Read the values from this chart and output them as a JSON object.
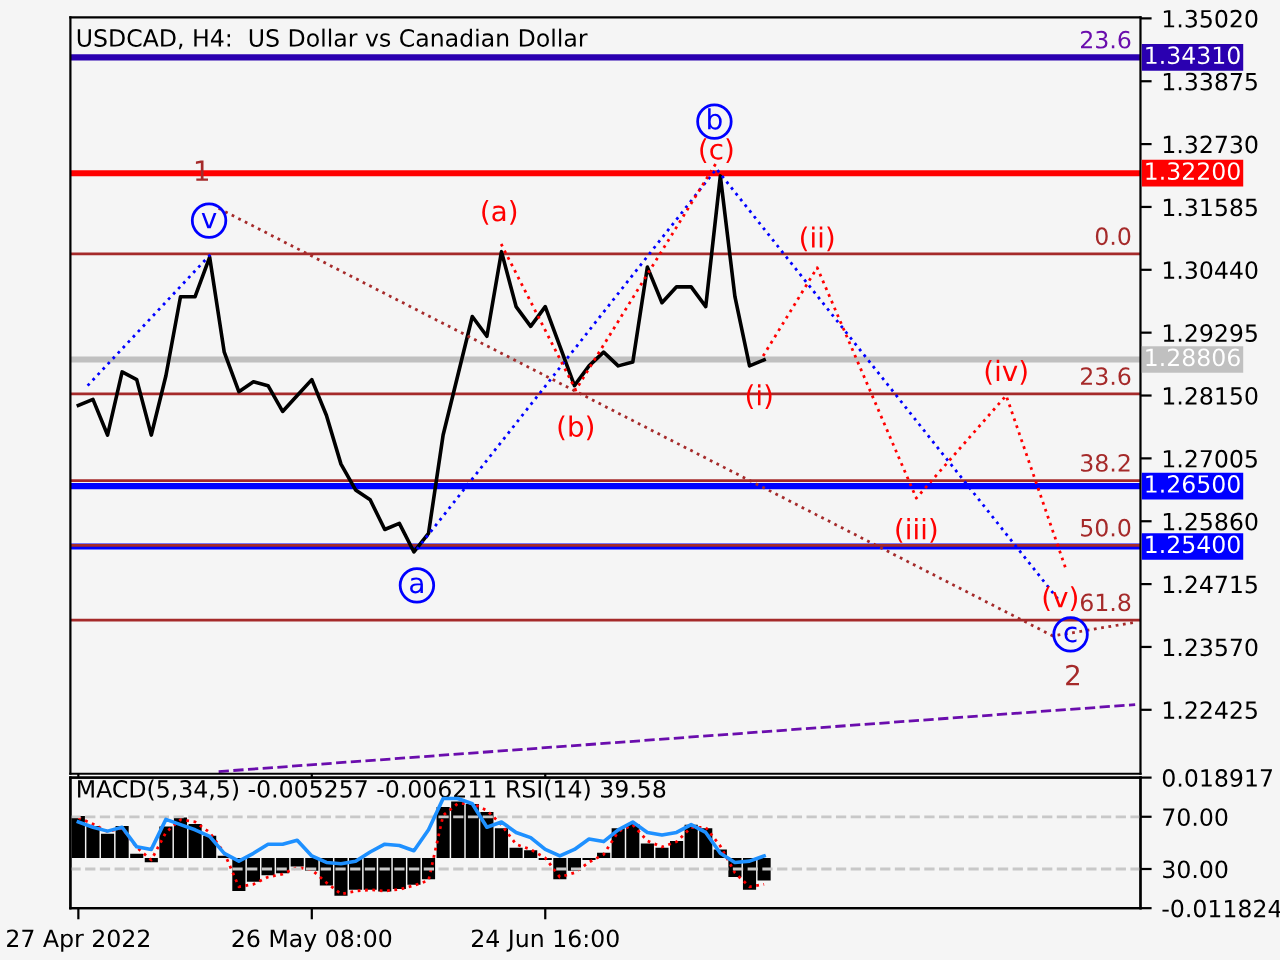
{
  "chart_data": [
    {
      "type": "line",
      "title": "USDCAD, H4:  US Dollar vs Canadian Dollar",
      "xlim": [
        "2022-04-26T00:00",
        "2022-09-07T11:00"
      ],
      "xticks": [
        {
          "value": "2022-04-27T00:00",
          "label": null
        },
        {
          "value": "2022-05-26T08:00",
          "label": null
        },
        {
          "value": "2022-06-24T16:00",
          "label": null
        }
      ],
      "ylim": [
        1.2126,
        1.3504
      ],
      "yticks": [
        {
          "value": 1.3502,
          "label": "1.35020"
        },
        {
          "value": 1.33875,
          "label": "1.33875"
        },
        {
          "value": 1.3273,
          "label": "1.32730"
        },
        {
          "value": 1.31585,
          "label": "1.31585"
        },
        {
          "value": 1.3044,
          "label": "1.30440"
        },
        {
          "value": 1.29295,
          "label": "1.29295"
        },
        {
          "value": 1.2815,
          "label": "1.28150"
        },
        {
          "value": 1.27005,
          "label": "1.27005"
        },
        {
          "value": 1.2586,
          "label": "1.25860"
        },
        {
          "value": 1.24715,
          "label": "1.24715"
        },
        {
          "value": 1.2357,
          "label": "1.23570"
        },
        {
          "value": 1.22425,
          "label": "1.22425"
        }
      ],
      "tick_labels": "y",
      "marker": "none",
      "x": [
        "2022-04-27T00:00",
        "2022-04-28T20:00",
        "2022-04-30T16:00",
        "2022-05-02T12:00",
        "2022-05-04T08:00",
        "2022-05-06T04:00",
        "2022-05-08T00:00",
        "2022-05-09T20:00",
        "2022-05-11T16:00",
        "2022-05-13T12:00",
        "2022-05-15T08:00",
        "2022-05-17T04:00",
        "2022-05-19T00:00",
        "2022-05-20T20:00",
        "2022-05-22T16:00",
        "2022-05-24T12:00",
        "2022-05-26T08:00",
        "2022-05-28T04:00",
        "2022-05-30T00:00",
        "2022-05-31T20:00",
        "2022-06-02T16:00",
        "2022-06-04T12:00",
        "2022-06-06T08:00",
        "2022-06-08T04:00",
        "2022-06-10T00:00",
        "2022-06-11T20:00",
        "2022-06-13T16:00",
        "2022-06-15T12:00",
        "2022-06-17T08:00",
        "2022-06-19T04:00",
        "2022-06-21T00:00",
        "2022-06-22T20:00",
        "2022-06-24T16:00",
        "2022-06-26T12:00",
        "2022-06-28T08:00",
        "2022-06-30T04:00",
        "2022-07-02T00:00",
        "2022-07-03T20:00",
        "2022-07-05T16:00",
        "2022-07-07T12:00",
        "2022-07-09T08:00",
        "2022-07-11T04:00",
        "2022-07-13T00:00",
        "2022-07-14T20:00",
        "2022-07-16T16:00",
        "2022-07-18T12:00",
        "2022-07-20T08:00",
        "2022-07-22T04:00"
      ],
      "series": [
        {
          "color": "#000000",
          "line_style": "solid",
          "values": [
            1.2797,
            1.2808,
            1.2743,
            1.2858,
            1.2844,
            1.2743,
            1.2851,
            1.2995,
            1.2995,
            1.3067,
            1.2894,
            1.2822,
            1.284,
            1.2833,
            1.2786,
            1.2815,
            1.2844,
            1.2779,
            1.269,
            1.2643,
            1.2625,
            1.2571,
            1.2582,
            1.253,
            1.2564,
            1.2743,
            1.2851,
            1.2959,
            1.2923,
            1.3077,
            1.2977,
            1.2941,
            1.2977,
            1.2905,
            1.2833,
            1.2869,
            1.2894,
            1.2869,
            1.2876,
            1.3049,
            1.2984,
            1.3013,
            1.3013,
            1.2977,
            1.3215,
            1.2995,
            1.2869,
            1.288
          ]
        },
        {
          "color": "#0000ff",
          "line_style": "dotted",
          "x": [
            "2022-04-28T04:00",
            "2022-05-13T16:00"
          ],
          "values": [
            1.2833,
            1.3073
          ]
        },
        {
          "color": "#0000ff",
          "line_style": "dotted",
          "x": [
            "2022-06-08T13:00",
            "2022-07-16T04:00",
            "2022-08-28T10:00"
          ],
          "values": [
            1.2535,
            1.3228,
            1.2438
          ]
        },
        {
          "color": "#a52a2a",
          "line_style": "dotted",
          "x": [
            "2022-05-14T15:00",
            "2022-08-27T11:00",
            "2022-09-06T19:00"
          ],
          "values": [
            1.3156,
            1.2377,
            1.2402
          ]
        },
        {
          "color": "#ff0000",
          "line_style": "dotted",
          "x": [
            "2022-06-19T03:00",
            "2022-06-28T12:00",
            "2022-07-16T04:00"
          ],
          "values": [
            1.3091,
            1.2825,
            1.3239
          ]
        },
        {
          "color": "#ff0000",
          "line_style": "dotted",
          "x": [
            "2022-07-22T01:00",
            "2022-07-28T20:00",
            "2022-08-10T07:00",
            "2022-08-21T14:00",
            "2022-08-29T02:00"
          ],
          "values": [
            1.2887,
            1.3048,
            1.2628,
            1.2815,
            1.2499
          ]
        },
        {
          "color": "#6a0dad",
          "line_style": "dashed",
          "x": [
            "2022-05-14T15:00",
            "2022-09-06T19:00"
          ],
          "values": [
            1.213,
            1.2252
          ]
        }
      ],
      "ref_lines": [
        {
          "axis": "y",
          "value": 1.3431,
          "label": "1.34310",
          "color": "#2a00b0"
        },
        {
          "axis": "y",
          "value": 1.322,
          "label": "1.32200",
          "color": "#ff0000"
        },
        {
          "axis": "y",
          "value": 1.28806,
          "label": "1.28806",
          "color": "#c0c0c0"
        },
        {
          "axis": "y",
          "value": 1.265,
          "label": "1.26500",
          "color": "#0000ff"
        },
        {
          "axis": "y",
          "value": 1.254,
          "label": "1.25400",
          "color": "#0000ff"
        },
        {
          "axis": "y",
          "value": 1.3073,
          "color": "#a52a2a"
        },
        {
          "axis": "y",
          "value": 1.2818,
          "color": "#a52a2a"
        },
        {
          "axis": "y",
          "value": 1.266,
          "color": "#a52a2a"
        },
        {
          "axis": "y",
          "value": 1.2542,
          "color": "#a52a2a"
        },
        {
          "axis": "y",
          "value": 1.2406,
          "color": "#a52a2a"
        }
      ],
      "annotations": [
        {
          "text": "1",
          "x": "2022-05-12T12:00",
          "y": 1.322
        },
        {
          "text": "v",
          "x": "2022-05-13T16:00",
          "y": 1.3073
        },
        {
          "text": "a",
          "x": "2022-06-08T13:00",
          "y": 1.2535
        },
        {
          "text": "(a)",
          "x": "2022-06-19T03:00",
          "y": 1.3091
        },
        {
          "text": "(b)",
          "x": "2022-06-28T12:00",
          "y": 1.2825
        },
        {
          "text": "b",
          "x": "2022-07-16T04:00",
          "y": 1.3228
        },
        {
          "text": "(c)",
          "x": "2022-07-16T04:00",
          "y": 1.3239
        },
        {
          "text": "(i)",
          "x": "2022-07-22T01:00",
          "y": 1.2887
        },
        {
          "text": "(ii)",
          "x": "2022-07-28T20:00",
          "y": 1.3048
        },
        {
          "text": "(iii)",
          "x": "2022-08-10T07:00",
          "y": 1.2628
        },
        {
          "text": "(iv)",
          "x": "2022-08-21T14:00",
          "y": 1.2815
        },
        {
          "text": "(v)",
          "x": "2022-08-29T02:00",
          "y": 1.2499
        },
        {
          "text": "c",
          "x": "2022-08-28T10:00",
          "y": 1.2438
        },
        {
          "text": "2",
          "x": "2022-08-27T11:00",
          "y": 1.2377
        },
        {
          "text": "23.6",
          "x": "2022-09-06T09:00",
          "y": 1.3431
        },
        {
          "text": "0.0",
          "x": "2022-09-06T09:00",
          "y": 1.3073
        },
        {
          "text": "23.6",
          "x": "2022-09-06T09:00",
          "y": 1.2818
        },
        {
          "text": "38.2",
          "x": "2022-09-06T09:00",
          "y": 1.266
        },
        {
          "text": "50.0",
          "x": "2022-09-06T09:00",
          "y": 1.2542
        },
        {
          "text": "61.8",
          "x": "2022-09-06T09:00",
          "y": 1.2406
        }
      ]
    },
    {
      "type": "bar",
      "title": "MACD(5,34,5) -0.005257 -0.006211 RSI(14) 39.58",
      "xlim": [
        "2022-04-26T00:00",
        "2022-09-07T11:00"
      ],
      "xticks": [
        {
          "value": "2022-04-27T00:00",
          "label": "27 Apr 2022"
        },
        {
          "value": "2022-05-26T08:00",
          "label": "26 May 08:00"
        },
        {
          "value": "2022-06-24T16:00",
          "label": "24 Jun 16:00"
        }
      ],
      "ylim": [
        -0.011824,
        0.018917
      ],
      "yticks": [
        0.018917,
        -0.011824
      ],
      "y2lim": [
        0,
        100
      ],
      "y2ticks": [
        {
          "value": 70,
          "label": "70.00"
        },
        {
          "value": 30,
          "label": "30.00"
        }
      ],
      "marker": "none",
      "x": [
        "2022-04-27T00:00",
        "2022-04-28T20:00",
        "2022-04-30T16:00",
        "2022-05-02T12:00",
        "2022-05-04T08:00",
        "2022-05-06T04:00",
        "2022-05-08T00:00",
        "2022-05-09T20:00",
        "2022-05-11T16:00",
        "2022-05-13T12:00",
        "2022-05-15T08:00",
        "2022-05-17T04:00",
        "2022-05-19T00:00",
        "2022-05-20T20:00",
        "2022-05-22T16:00",
        "2022-05-24T12:00",
        "2022-05-26T08:00",
        "2022-05-28T04:00",
        "2022-05-30T00:00",
        "2022-05-31T20:00",
        "2022-06-02T16:00",
        "2022-06-04T12:00",
        "2022-06-06T08:00",
        "2022-06-08T04:00",
        "2022-06-10T00:00",
        "2022-06-11T20:00",
        "2022-06-13T16:00",
        "2022-06-15T12:00",
        "2022-06-17T08:00",
        "2022-06-19T04:00",
        "2022-06-21T00:00",
        "2022-06-22T20:00",
        "2022-06-24T16:00",
        "2022-06-26T12:00",
        "2022-06-28T08:00",
        "2022-06-30T04:00",
        "2022-07-02T00:00",
        "2022-07-03T20:00",
        "2022-07-05T16:00",
        "2022-07-07T12:00",
        "2022-07-09T08:00",
        "2022-07-11T04:00",
        "2022-07-13T00:00",
        "2022-07-14T20:00",
        "2022-07-16T16:00",
        "2022-07-18T12:00",
        "2022-07-20T08:00",
        "2022-07-22T04:00"
      ],
      "series": [
        {
          "type": "bar",
          "color": "#000000",
          "values": [
            0.0099,
            0.0075,
            0.0057,
            0.0075,
            0.001,
            -0.001,
            0.0074,
            0.0095,
            0.008,
            0.0052,
            0.0005,
            -0.0078,
            -0.0056,
            -0.0041,
            -0.0036,
            -0.002,
            -0.003,
            -0.0065,
            -0.0089,
            -0.0075,
            -0.0075,
            -0.0079,
            -0.0073,
            -0.0063,
            -0.005,
            0.012,
            0.0133,
            0.0127,
            0.0108,
            0.007,
            0.0024,
            0.0018,
            -0.0005,
            -0.005,
            -0.003,
            -0.0005,
            0.0012,
            0.007,
            0.008,
            0.0034,
            0.0024,
            0.004,
            0.0078,
            0.007,
            0.002,
            -0.0045,
            -0.0075,
            -0.0053
          ]
        },
        {
          "type": "line",
          "color": "#ff0000",
          "line_style": "dotted",
          "values": [
            0.0095,
            0.008,
            0.0062,
            0.007,
            0.0025,
            -0.0005,
            0.006,
            0.009,
            0.0085,
            0.006,
            0.0012,
            -0.0068,
            -0.0062,
            -0.0045,
            -0.0038,
            -0.0022,
            -0.0028,
            -0.0058,
            -0.0085,
            -0.0078,
            -0.0075,
            -0.0078,
            -0.0074,
            -0.0065,
            -0.0053,
            0.01,
            0.0128,
            0.0128,
            0.0112,
            0.0078,
            0.0032,
            0.002,
            0.0,
            -0.0045,
            -0.0035,
            -0.001,
            0.0008,
            0.0062,
            0.0078,
            0.004,
            0.0026,
            0.0038,
            0.0072,
            0.0072,
            0.0028,
            -0.0035,
            -0.0068,
            -0.0062
          ]
        },
        {
          "type": "line",
          "axis": "y2",
          "color": "#1e90ff",
          "line_style": "solid",
          "values": [
            66,
            62,
            59,
            62,
            47,
            45,
            68,
            64,
            60,
            55,
            42,
            36,
            42,
            49,
            49,
            52,
            40,
            35,
            34,
            36,
            43,
            49,
            48,
            44,
            60,
            84,
            84,
            80,
            62,
            66,
            58,
            54,
            45,
            40,
            45,
            53,
            51,
            60,
            66,
            58,
            56,
            58,
            64,
            58,
            42,
            35,
            36,
            40
          ]
        }
      ],
      "ref_lines": [
        {
          "axis": "y2",
          "value": 70,
          "color": "#c8c8c8",
          "line_style": "dashed"
        },
        {
          "axis": "y2",
          "value": 30,
          "color": "#c8c8c8",
          "line_style": "dashed"
        }
      ]
    }
  ]
}
